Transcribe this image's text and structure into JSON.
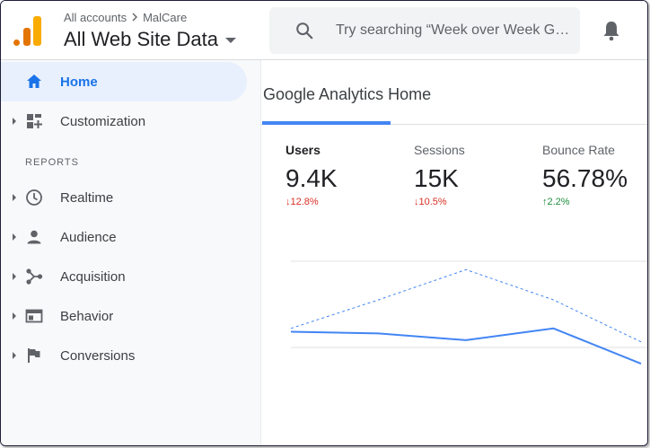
{
  "header": {
    "breadcrumb": {
      "accounts": "All accounts",
      "account": "MalCare"
    },
    "property_name": "All Web Site Data",
    "search_placeholder": "Try searching “Week over Week G…",
    "icons": {
      "search": "search-icon",
      "notifications": "bell-icon",
      "logo": "analytics-logo"
    }
  },
  "sidebar": {
    "items_top": [
      {
        "label": "Home",
        "icon": "home-icon",
        "active": true
      },
      {
        "label": "Customization",
        "icon": "dashboard-plus-icon"
      }
    ],
    "section_label": "REPORTS",
    "reports": [
      {
        "label": "Realtime",
        "icon": "clock-icon"
      },
      {
        "label": "Audience",
        "icon": "person-icon"
      },
      {
        "label": "Acquisition",
        "icon": "acquisition-icon"
      },
      {
        "label": "Behavior",
        "icon": "behavior-icon"
      },
      {
        "label": "Conversions",
        "icon": "flag-icon"
      }
    ]
  },
  "main": {
    "title": "Google Analytics Home",
    "metrics": [
      {
        "label": "Users",
        "value": "9.4K",
        "change": "↓12.8%",
        "trend": "down",
        "selected": true
      },
      {
        "label": "Sessions",
        "value": "15K",
        "change": "↓10.5%",
        "trend": "down"
      },
      {
        "label": "Bounce Rate",
        "value": "56.78%",
        "change": "↑2.2%",
        "trend": "up"
      }
    ]
  },
  "chart_data": {
    "type": "line",
    "x": [
      0,
      1,
      2,
      3,
      4
    ],
    "series": [
      {
        "style": "solid",
        "color": "#4285f4",
        "values": [
          0.58,
          0.57,
          0.53,
          0.6,
          0.39
        ]
      },
      {
        "style": "dashed",
        "color": "#4285f4",
        "values": [
          0.6,
          0.77,
          0.95,
          0.77,
          0.52
        ]
      }
    ],
    "ylim": [
      0,
      1
    ],
    "grid": true,
    "colors": {
      "accent": "#1a73e8",
      "line": "#4285f4",
      "down": "#d93025",
      "up": "#1e8e3e"
    }
  }
}
